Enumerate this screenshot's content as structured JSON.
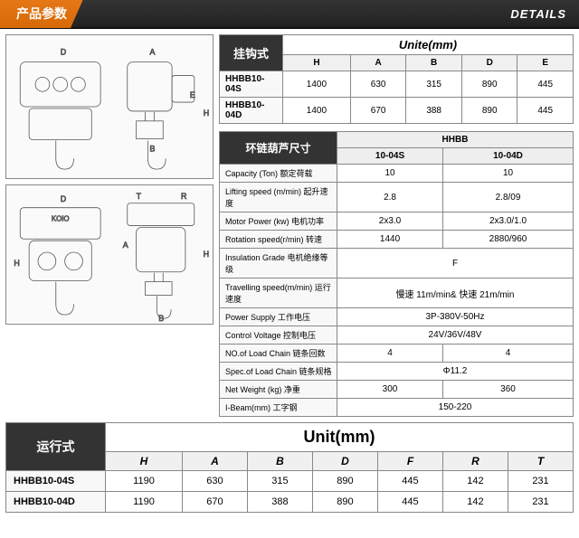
{
  "header": {
    "title_cn": "产品参数",
    "title_en": "DETAILS"
  },
  "colors": {
    "orange": "#e67817",
    "dark": "#2a2a2a",
    "border": "#888"
  },
  "diagrams": {
    "labels": [
      "D",
      "A",
      "B",
      "H",
      "T",
      "R",
      "E"
    ]
  },
  "table1": {
    "label": "挂钩式",
    "unit_header": "Unite(mm)",
    "cols": [
      "H",
      "A",
      "B",
      "D",
      "E"
    ],
    "rows": [
      {
        "model": "HHBB10-04S",
        "v": [
          "1400",
          "630",
          "315",
          "890",
          "445"
        ]
      },
      {
        "model": "HHBB10-04D",
        "v": [
          "1400",
          "670",
          "388",
          "890",
          "445"
        ]
      }
    ]
  },
  "table2": {
    "label": "环链葫芦尺寸",
    "group": "HHBB",
    "subcols": [
      "10-04S",
      "10-04D"
    ],
    "rows": [
      {
        "l": "Capacity (Ton) 额定荷载",
        "v": [
          "10",
          "10"
        ]
      },
      {
        "l": "Lifting speed (m/min) 起升速度",
        "v": [
          "2.8",
          "2.8/09"
        ]
      },
      {
        "l": "Motor Power (kw) 电机功率",
        "v": [
          "2x3.0",
          "2x3.0/1.0"
        ]
      },
      {
        "l": "Rotation speed(r/min) 转速",
        "v": [
          "1440",
          "2880/960"
        ]
      },
      {
        "l": "Insulation Grade 电机绝缘等级",
        "span": "F"
      },
      {
        "l": "Travelling speed(m/min) 运行速度",
        "span": "慢速 11m/min& 快速 21m/min"
      },
      {
        "l": "Power Supply 工作电压",
        "span": "3P-380V-50Hz"
      },
      {
        "l": "Control Voltage 控制电压",
        "span": "24V/36V/48V"
      },
      {
        "l": "NO.of Load Chain 链条回数",
        "v": [
          "4",
          "4"
        ]
      },
      {
        "l": "Spec.of Load Chain 链条规格",
        "span": "Φ11.2"
      },
      {
        "l": "Net Weight (kg) 净重",
        "v": [
          "300",
          "360"
        ]
      },
      {
        "l": "I-Beam(mm) 工字钢",
        "span": "150-220"
      }
    ]
  },
  "table3": {
    "label": "运行式",
    "unit_header": "Unit(mm)",
    "cols": [
      "H",
      "A",
      "B",
      "D",
      "F",
      "R",
      "T"
    ],
    "rows": [
      {
        "model": "HHBB10-04S",
        "v": [
          "1190",
          "630",
          "315",
          "890",
          "445",
          "142",
          "231"
        ]
      },
      {
        "model": "HHBB10-04D",
        "v": [
          "1190",
          "670",
          "388",
          "890",
          "445",
          "142",
          "231"
        ]
      }
    ]
  }
}
